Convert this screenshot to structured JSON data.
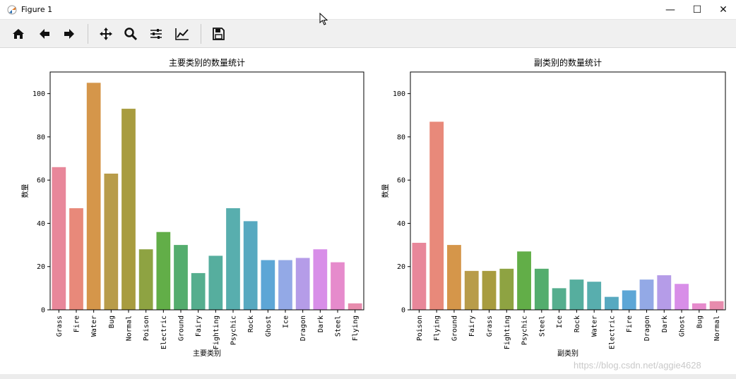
{
  "window": {
    "title": "Figure 1",
    "minimize_glyph": "—",
    "maximize_glyph": "☐",
    "close_glyph": "✕"
  },
  "toolbar": {
    "buttons": [
      {
        "name": "home-icon"
      },
      {
        "name": "back-arrow-icon"
      },
      {
        "name": "forward-arrow-icon"
      },
      {
        "name": "pan-icon"
      },
      {
        "name": "zoom-icon"
      },
      {
        "name": "subplots-config-icon"
      },
      {
        "name": "edit-axes-icon"
      },
      {
        "name": "save-icon"
      }
    ]
  },
  "watermark": "https://blog.csdn.net/aggie4628",
  "chart_data": [
    {
      "type": "bar",
      "title": "主要类别的数量统计",
      "xlabel": "主要类别",
      "ylabel": "数量",
      "ylim": [
        0,
        110
      ],
      "yticks": [
        0,
        20,
        40,
        60,
        80,
        100
      ],
      "categories": [
        "Grass",
        "Fire",
        "Water",
        "Bug",
        "Normal",
        "Poison",
        "Electric",
        "Ground",
        "Fairy",
        "Fighting",
        "Psychic",
        "Rock",
        "Ghost",
        "Ice",
        "Dragon",
        "Dark",
        "Steel",
        "Flying"
      ],
      "values": [
        66,
        47,
        105,
        63,
        93,
        28,
        36,
        30,
        17,
        25,
        47,
        41,
        23,
        23,
        24,
        28,
        22,
        3
      ],
      "colors": [
        "#e8879a",
        "#e8897a",
        "#d5964a",
        "#b89c4a",
        "#a89c3f",
        "#8ea342",
        "#62ae48",
        "#54ad6e",
        "#55ae8e",
        "#56ae9e",
        "#58aeae",
        "#57a9c0",
        "#5da6d6",
        "#93a9e6",
        "#b59ce8",
        "#d88ee8",
        "#e68bcc",
        "#e78cad"
      ],
      "grid": false
    },
    {
      "type": "bar",
      "title": "副类别的数量统计",
      "xlabel": "副类别",
      "ylabel": "数量",
      "ylim": [
        0,
        110
      ],
      "yticks": [
        0,
        20,
        40,
        60,
        80,
        100
      ],
      "categories": [
        "Poison",
        "Flying",
        "Ground",
        "Fairy",
        "Grass",
        "Fighting",
        "Psychic",
        "Steel",
        "Ice",
        "Rock",
        "Water",
        "Electric",
        "Fire",
        "Dragon",
        "Dark",
        "Ghost",
        "Bug",
        "Normal"
      ],
      "values": [
        31,
        87,
        30,
        18,
        18,
        19,
        27,
        19,
        10,
        14,
        13,
        6,
        9,
        14,
        16,
        12,
        3,
        4
      ],
      "colors": [
        "#e8879a",
        "#e8897a",
        "#d5964a",
        "#b89c4a",
        "#a89c3f",
        "#8ea342",
        "#62ae48",
        "#54ad6e",
        "#55ae8e",
        "#56ae9e",
        "#58aeae",
        "#57a9c0",
        "#5da6d6",
        "#93a9e6",
        "#b59ce8",
        "#d88ee8",
        "#e68bcc",
        "#e78cad"
      ],
      "grid": false
    }
  ]
}
